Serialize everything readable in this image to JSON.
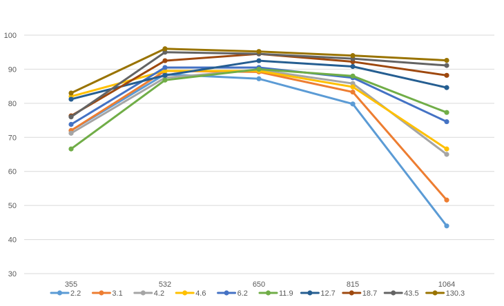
{
  "chart_data": {
    "type": "line",
    "title": "",
    "xlabel": "",
    "ylabel": "",
    "categories": [
      "355",
      "532",
      "650",
      "815",
      "1064"
    ],
    "ylim": [
      30,
      100
    ],
    "yticks": [
      30,
      40,
      50,
      60,
      70,
      80,
      90,
      100
    ],
    "grid": true,
    "legend_position": "bottom",
    "series": [
      {
        "name": "2.2",
        "color": "#5B9BD5",
        "values": [
          72.0,
          88.5,
          87.2,
          79.8,
          44.0
        ]
      },
      {
        "name": "3.1",
        "color": "#ED7D31",
        "values": [
          72.0,
          89.5,
          89.2,
          83.3,
          51.6
        ]
      },
      {
        "name": "4.2",
        "color": "#A5A5A5",
        "values": [
          71.2,
          87.5,
          89.8,
          85.8,
          65.0
        ]
      },
      {
        "name": "4.6",
        "color": "#FFC000",
        "values": [
          82.0,
          89.5,
          89.5,
          84.8,
          66.6
        ]
      },
      {
        "name": "6.2",
        "color": "#4472C4",
        "values": [
          73.8,
          90.5,
          90.5,
          87.5,
          74.6
        ]
      },
      {
        "name": "11.9",
        "color": "#70AD47",
        "values": [
          66.6,
          86.8,
          90.0,
          88.0,
          77.3
        ]
      },
      {
        "name": "12.7",
        "color": "#255E91",
        "values": [
          81.2,
          88.2,
          92.5,
          90.8,
          84.6
        ]
      },
      {
        "name": "18.7",
        "color": "#9E480E",
        "values": [
          76.3,
          92.5,
          94.5,
          92.2,
          88.2
        ]
      },
      {
        "name": "43.5",
        "color": "#636363",
        "values": [
          76.0,
          95.0,
          94.5,
          93.1,
          91.1
        ]
      },
      {
        "name": "130.3",
        "color": "#997300",
        "values": [
          83.0,
          96.0,
          95.2,
          94.0,
          92.6
        ]
      }
    ]
  }
}
